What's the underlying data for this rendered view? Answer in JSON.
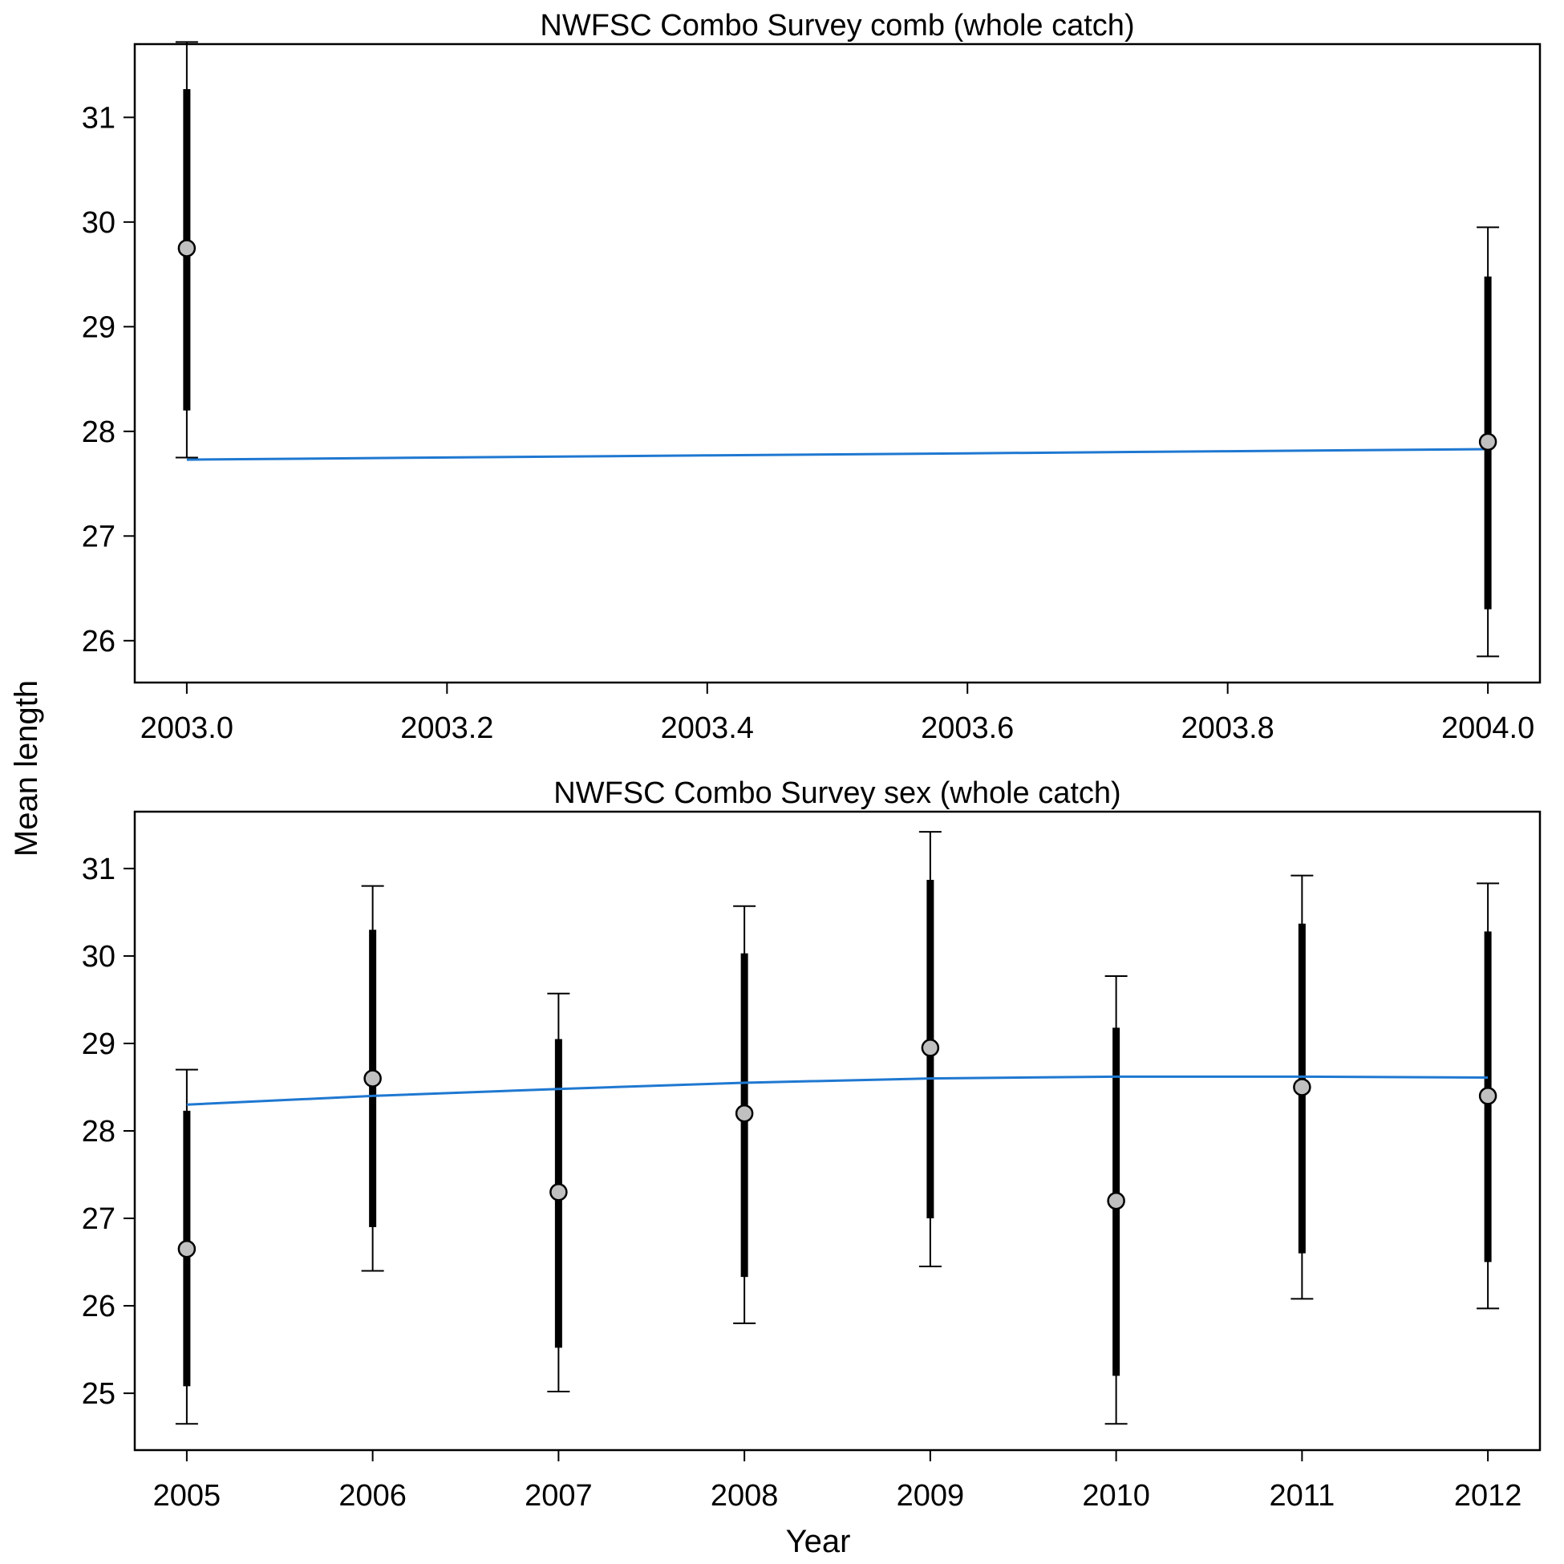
{
  "figure": {
    "ylabel": "Mean length",
    "xlabel": "Year"
  },
  "chart_data": [
    {
      "type": "scatter",
      "title": "NWFSC Combo Survey comb (whole catch)",
      "xlim": [
        2002.96,
        2004.04
      ],
      "ylim": [
        25.6,
        31.7
      ],
      "xticks": [
        2003.0,
        2003.2,
        2003.4,
        2003.6,
        2003.8,
        2004.0
      ],
      "xtick_labels": [
        "2003.0",
        "2003.2",
        "2003.4",
        "2003.6",
        "2003.8",
        "2004.0"
      ],
      "yticks": [
        26,
        27,
        28,
        29,
        30,
        31
      ],
      "ytick_labels": [
        "26",
        "27",
        "28",
        "29",
        "30",
        "31"
      ],
      "observed": {
        "x": [
          2003.0,
          2004.0
        ],
        "y": [
          29.75,
          27.9
        ],
        "inner_low": [
          28.2,
          26.3
        ],
        "inner_high": [
          31.27,
          29.48
        ],
        "outer_low": [
          27.75,
          25.85
        ],
        "outer_high": [
          31.72,
          29.95
        ]
      },
      "expected": {
        "x": [
          2003.0,
          2003.2,
          2003.4,
          2003.6,
          2003.8,
          2004.0
        ],
        "y": [
          27.73,
          27.75,
          27.77,
          27.79,
          27.81,
          27.83
        ]
      },
      "colors": {
        "expected_line": "#1f78d1",
        "point_fill": "#c0c0c0"
      }
    },
    {
      "type": "scatter",
      "title": "NWFSC Combo Survey sex (whole catch)",
      "xlim": [
        2004.72,
        2012.28
      ],
      "ylim": [
        24.35,
        31.65
      ],
      "xticks": [
        2005,
        2006,
        2007,
        2008,
        2009,
        2010,
        2011,
        2012
      ],
      "xtick_labels": [
        "2005",
        "2006",
        "2007",
        "2008",
        "2009",
        "2010",
        "2011",
        "2012"
      ],
      "yticks": [
        25,
        26,
        27,
        28,
        29,
        30,
        31
      ],
      "ytick_labels": [
        "25",
        "26",
        "27",
        "28",
        "29",
        "30",
        "31"
      ],
      "observed": {
        "x": [
          2005,
          2006,
          2007,
          2008,
          2009,
          2010,
          2011,
          2012
        ],
        "y": [
          26.65,
          28.6,
          27.3,
          28.2,
          28.95,
          27.2,
          28.5,
          28.4
        ],
        "inner_low": [
          25.08,
          26.9,
          25.52,
          26.33,
          27.0,
          25.2,
          26.6,
          26.5
        ],
        "inner_high": [
          28.23,
          30.3,
          29.05,
          30.03,
          30.87,
          29.18,
          30.37,
          30.28
        ],
        "outer_low": [
          24.65,
          26.4,
          25.02,
          25.8,
          26.45,
          24.65,
          26.08,
          25.97
        ],
        "outer_high": [
          28.7,
          30.8,
          29.57,
          30.57,
          31.42,
          29.77,
          30.92,
          30.83
        ]
      },
      "expected": {
        "x": [
          2005,
          2006,
          2007,
          2008,
          2009,
          2010,
          2011,
          2012
        ],
        "y": [
          28.3,
          28.4,
          28.48,
          28.55,
          28.6,
          28.62,
          28.62,
          28.61
        ]
      },
      "colors": {
        "expected_line": "#1f78d1",
        "point_fill": "#c0c0c0"
      }
    }
  ]
}
